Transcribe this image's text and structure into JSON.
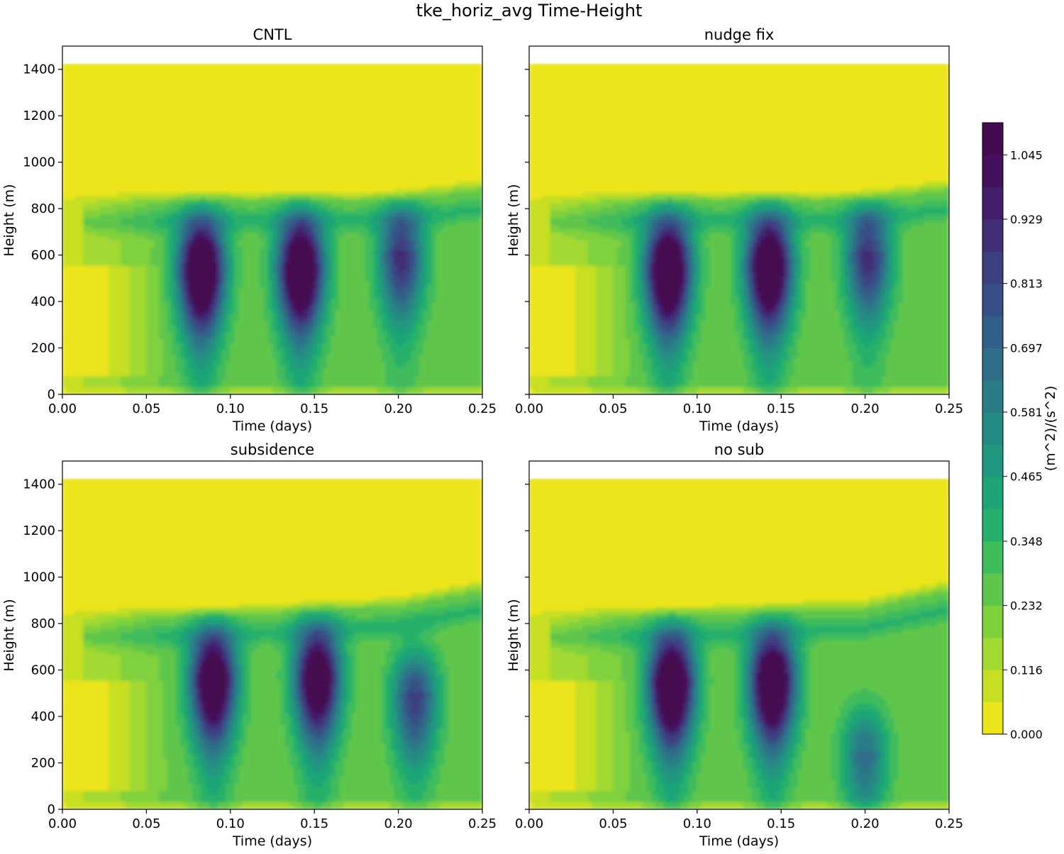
{
  "figure": {
    "title": "tke_horiz_avg Time-Height"
  },
  "chart_data": [
    {
      "type": "heatmap",
      "title": "CNTL",
      "xlabel": "Time (days)",
      "ylabel": "Height (m)",
      "xlim": [
        0,
        0.25
      ],
      "ylim": [
        0,
        1500
      ],
      "xticks": [
        0.0,
        0.05,
        0.1,
        0.15,
        0.2,
        0.25
      ],
      "xtick_labels": [
        "0.00",
        "0.05",
        "0.10",
        "0.15",
        "0.20",
        "0.25"
      ],
      "yticks": [
        0,
        200,
        400,
        600,
        800,
        1000,
        1200,
        1400
      ],
      "ytick_labels": [
        "0",
        "200",
        "400",
        "600",
        "800",
        "1000",
        "1200",
        "1400"
      ],
      "data_top_height": 1425,
      "boundary_layer_top": [
        {
          "t": 0.0,
          "z": 820
        },
        {
          "t": 0.1,
          "z": 830
        },
        {
          "t": 0.2,
          "z": 830
        },
        {
          "t": 0.25,
          "z": 880
        }
      ],
      "cores": [
        {
          "t": 0.083,
          "z": 570,
          "peak": 1.08
        },
        {
          "t": 0.142,
          "z": 575,
          "peak": 1.08
        },
        {
          "t": 0.202,
          "z": 620,
          "peak": 0.62
        }
      ]
    },
    {
      "type": "heatmap",
      "title": "nudge fix",
      "xlabel": "Time (days)",
      "ylabel": "Height (m)",
      "xlim": [
        0,
        0.25
      ],
      "ylim": [
        0,
        1500
      ],
      "xticks": [
        0.0,
        0.05,
        0.1,
        0.15,
        0.2,
        0.25
      ],
      "xtick_labels": [
        "0.00",
        "0.05",
        "0.10",
        "0.15",
        "0.20",
        "0.25"
      ],
      "yticks": [
        0,
        200,
        400,
        600,
        800,
        1000,
        1200,
        1400
      ],
      "ytick_labels": [
        "0",
        "200",
        "400",
        "600",
        "800",
        "1000",
        "1200",
        "1400"
      ],
      "data_top_height": 1425,
      "boundary_layer_top": [
        {
          "t": 0.0,
          "z": 820
        },
        {
          "t": 0.1,
          "z": 830
        },
        {
          "t": 0.2,
          "z": 830
        },
        {
          "t": 0.25,
          "z": 880
        }
      ],
      "cores": [
        {
          "t": 0.083,
          "z": 570,
          "peak": 1.08
        },
        {
          "t": 0.143,
          "z": 580,
          "peak": 1.05
        },
        {
          "t": 0.202,
          "z": 620,
          "peak": 0.62
        }
      ]
    },
    {
      "type": "heatmap",
      "title": "subsidence",
      "xlabel": "Time (days)",
      "ylabel": "Height (m)",
      "xlim": [
        0,
        0.25
      ],
      "ylim": [
        0,
        1500
      ],
      "xticks": [
        0.0,
        0.05,
        0.1,
        0.15,
        0.2,
        0.25
      ],
      "xtick_labels": [
        "0.00",
        "0.05",
        "0.10",
        "0.15",
        "0.20",
        "0.25"
      ],
      "yticks": [
        0,
        200,
        400,
        600,
        800,
        1000,
        1200,
        1400
      ],
      "ytick_labels": [
        "0",
        "200",
        "400",
        "600",
        "800",
        "1000",
        "1200",
        "1400"
      ],
      "data_top_height": 1425,
      "boundary_layer_top": [
        {
          "t": 0.0,
          "z": 820
        },
        {
          "t": 0.1,
          "z": 830
        },
        {
          "t": 0.2,
          "z": 870
        },
        {
          "t": 0.25,
          "z": 940
        }
      ],
      "cores": [
        {
          "t": 0.09,
          "z": 585,
          "peak": 1.0
        },
        {
          "t": 0.152,
          "z": 600,
          "peak": 0.97
        },
        {
          "t": 0.21,
          "z": 500,
          "peak": 0.56
        }
      ]
    },
    {
      "type": "heatmap",
      "title": "no sub",
      "xlabel": "Time (days)",
      "ylabel": "Height (m)",
      "xlim": [
        0,
        0.25
      ],
      "ylim": [
        0,
        1500
      ],
      "xticks": [
        0.0,
        0.05,
        0.1,
        0.15,
        0.2,
        0.25
      ],
      "xtick_labels": [
        "0.00",
        "0.05",
        "0.10",
        "0.15",
        "0.20",
        "0.25"
      ],
      "yticks": [
        0,
        200,
        400,
        600,
        800,
        1000,
        1200,
        1400
      ],
      "ytick_labels": [
        "0",
        "200",
        "400",
        "600",
        "800",
        "1000",
        "1200",
        "1400"
      ],
      "data_top_height": 1425,
      "boundary_layer_top": [
        {
          "t": 0.0,
          "z": 820
        },
        {
          "t": 0.1,
          "z": 830
        },
        {
          "t": 0.2,
          "z": 860
        },
        {
          "t": 0.25,
          "z": 940
        }
      ],
      "cores": [
        {
          "t": 0.085,
          "z": 570,
          "peak": 1.08
        },
        {
          "t": 0.145,
          "z": 580,
          "peak": 1.05
        },
        {
          "t": 0.2,
          "z": 260,
          "peak": 0.4
        }
      ]
    }
  ],
  "colorbar": {
    "label": "(m^2)/(s^2)",
    "min": 0.0,
    "max": 1.103,
    "levels": 19,
    "tick_values": [
      0.0,
      0.116,
      0.232,
      0.348,
      0.465,
      0.581,
      0.697,
      0.813,
      0.929,
      1.045
    ],
    "tick_labels": [
      "0.000",
      "0.116",
      "0.232",
      "0.348",
      "0.465",
      "0.581",
      "0.697",
      "0.813",
      "0.929",
      "1.045"
    ],
    "colors": [
      "#ece51d",
      "#c7df22",
      "#a2d930",
      "#7fd13c",
      "#5ec64c",
      "#3fbc5c",
      "#26b06b",
      "#1fa477",
      "#21977f",
      "#258a84",
      "#2a7c87",
      "#2e6e88",
      "#325f88",
      "#374f86",
      "#3c3f80",
      "#402f76",
      "#431e6a",
      "#45105c",
      "#440b50"
    ]
  }
}
